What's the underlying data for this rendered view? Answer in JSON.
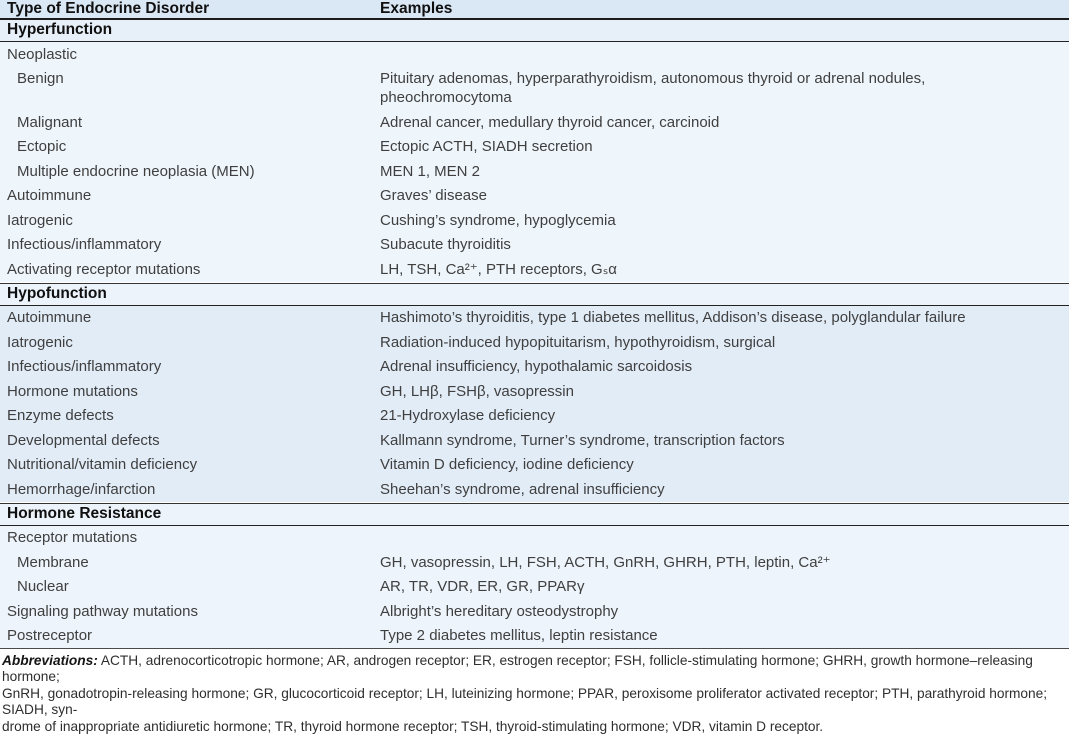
{
  "table": {
    "columns": [
      "Type of Endocrine Disorder",
      "Examples"
    ],
    "sections": [
      {
        "title": "Hyperfunction",
        "header_bg": "#e7eff8",
        "body_bg": "#eef5fb",
        "rows": [
          {
            "indent": 0,
            "type": "Neoplastic",
            "example": ""
          },
          {
            "indent": 1,
            "type": "Benign",
            "example": "Pituitary adenomas, hyperparathyroidism, autonomous thyroid or adrenal nodules,\npheochromocytoma"
          },
          {
            "indent": 1,
            "type": "Malignant",
            "example": "Adrenal cancer, medullary thyroid cancer, carcinoid"
          },
          {
            "indent": 1,
            "type": "Ectopic",
            "example": "Ectopic ACTH, SIADH secretion"
          },
          {
            "indent": 1,
            "type": "Multiple endocrine neoplasia (MEN)",
            "example": "MEN 1, MEN 2"
          },
          {
            "indent": 0,
            "type": "Autoimmune",
            "example": "Graves’ disease"
          },
          {
            "indent": 0,
            "type": "Iatrogenic",
            "example": "Cushing’s syndrome, hypoglycemia"
          },
          {
            "indent": 0,
            "type": "Infectious/inflammatory",
            "example": "Subacute thyroiditis"
          },
          {
            "indent": 0,
            "type": "Activating receptor mutations",
            "example": "LH, TSH, Ca²⁺, PTH receptors, Gₛα"
          }
        ]
      },
      {
        "title": "Hypofunction",
        "header_bg": "#ecf3fa",
        "body_bg": "#e2ecf7",
        "rows": [
          {
            "indent": 0,
            "type": "Autoimmune",
            "example": "Hashimoto’s thyroiditis, type 1 diabetes mellitus, Addison’s disease, polyglandular failure"
          },
          {
            "indent": 0,
            "type": "Iatrogenic",
            "example": "Radiation-induced hypopituitarism, hypothyroidism, surgical"
          },
          {
            "indent": 0,
            "type": "Infectious/inflammatory",
            "example": "Adrenal insufficiency, hypothalamic sarcoidosis"
          },
          {
            "indent": 0,
            "type": "Hormone mutations",
            "example": "GH, LHβ, FSHβ, vasopressin"
          },
          {
            "indent": 0,
            "type": "Enzyme defects",
            "example": "21-Hydroxylase deficiency"
          },
          {
            "indent": 0,
            "type": "Developmental defects",
            "example": "Kallmann syndrome, Turner’s syndrome, transcription factors"
          },
          {
            "indent": 0,
            "type": "Nutritional/vitamin deficiency",
            "example": "Vitamin D deficiency, iodine deficiency"
          },
          {
            "indent": 0,
            "type": "Hemorrhage/infarction",
            "example": "Sheehan’s syndrome, adrenal insufficiency"
          }
        ]
      },
      {
        "title": "Hormone Resistance",
        "header_bg": "#ecf3fa",
        "body_bg": "#edf4fb",
        "rows": [
          {
            "indent": 0,
            "type": "Receptor mutations",
            "example": ""
          },
          {
            "indent": 1,
            "type": "Membrane",
            "example": "GH, vasopressin, LH, FSH, ACTH, GnRH, GHRH, PTH, leptin, Ca²⁺"
          },
          {
            "indent": 1,
            "type": "Nuclear",
            "example": "AR, TR, VDR, ER, GR, PPARγ"
          },
          {
            "indent": 0,
            "type": "Signaling pathway mutations",
            "example": "Albright’s hereditary osteodystrophy"
          },
          {
            "indent": 0,
            "type": "Postreceptor",
            "example": "Type 2 diabetes mellitus, leptin resistance"
          }
        ]
      }
    ]
  },
  "footer": {
    "label": "Abbreviations:",
    "lines": [
      "ACTH, adrenocorticotropic hormone; AR, androgen receptor; ER, estrogen receptor; FSH, follicle-stimulating hormone; GHRH, growth hormone–releasing hormone;",
      "GnRH, gonadotropin-releasing hormone; GR, glucocorticoid receptor; LH, luteinizing hormone; PPAR, peroxisome proliferator activated receptor; PTH, parathyroid hormone; SIADH, syn-",
      "drome of inappropriate antidiuretic hormone; TR, thyroid hormone receptor; TSH, thyroid-stimulating hormone; VDR, vitamin D receptor."
    ]
  },
  "colors": {
    "header_row_bg": "#dae7f4",
    "rule": "#1c1c1c",
    "body_text": "#3f3f3f",
    "heading_text": "#101010",
    "footer_text": "#2e2e2e",
    "page_bg": "#ffffff"
  }
}
